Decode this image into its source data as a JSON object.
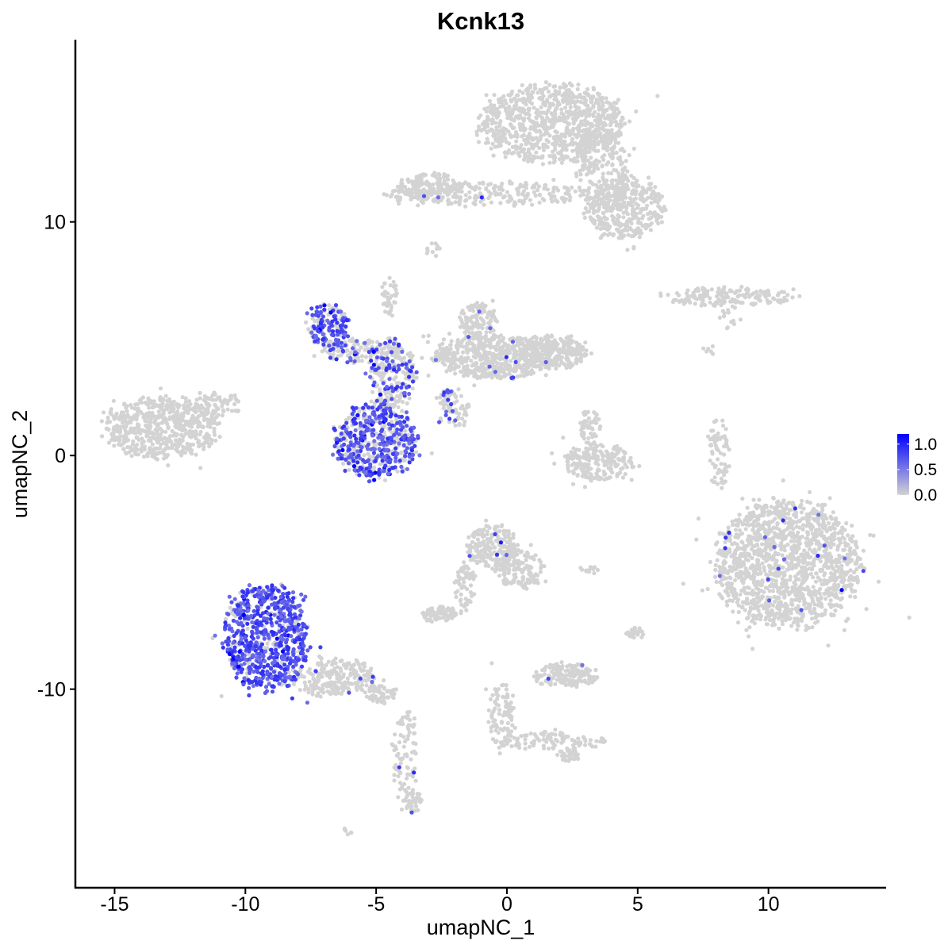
{
  "chart_data": {
    "type": "scatter",
    "title": "Kcnk13",
    "xlabel": "umapNC_1",
    "ylabel": "umapNC_2",
    "xlim": [
      -16.5,
      14.5
    ],
    "ylim": [
      -18.5,
      17.8
    ],
    "x_ticks": [
      -15,
      -10,
      -5,
      0,
      5,
      10
    ],
    "x_tick_labels": [
      "-15",
      "-10",
      "-5",
      "0",
      "5",
      "10"
    ],
    "y_ticks": [
      -10,
      0,
      10
    ],
    "y_tick_labels": [
      "-10",
      "0",
      "10"
    ],
    "grid": false,
    "legend": {
      "placement": "right",
      "type": "colorbar",
      "min": 0.0,
      "max": 1.2,
      "ticks": [
        0.0,
        0.5,
        1.0
      ],
      "tick_labels": [
        "0.0",
        "0.5",
        "1.0"
      ],
      "low_color": "#d3d3d3",
      "high_color": "#0000ff"
    },
    "clusters": [
      {
        "name": "top-big",
        "cx": 1.8,
        "cy": 14.2,
        "rx": 2.8,
        "ry": 1.7,
        "n": 900,
        "expr_frac": 0.0
      },
      {
        "name": "top-arm",
        "cx": -0.8,
        "cy": 11.2,
        "rx": 4.0,
        "ry": 0.5,
        "n": 260,
        "expr_frac": 0.01
      },
      {
        "name": "top-left-blob",
        "cx": -3.0,
        "cy": 11.5,
        "rx": 1.2,
        "ry": 0.6,
        "n": 140,
        "expr_frac": 0.0
      },
      {
        "name": "top-right-tail",
        "cx": 4.5,
        "cy": 10.6,
        "rx": 1.5,
        "ry": 1.3,
        "n": 380,
        "expr_frac": 0.0
      },
      {
        "name": "top-stream",
        "cx": 3.7,
        "cy": 12.3,
        "rx": 1.0,
        "ry": 1.8,
        "n": 200,
        "expr_frac": 0.0
      },
      {
        "name": "top-small-dots",
        "cx": -2.8,
        "cy": 8.8,
        "rx": 0.3,
        "ry": 0.3,
        "n": 12,
        "expr_frac": 0.0
      },
      {
        "name": "right-strip",
        "cx": 8.5,
        "cy": 6.8,
        "rx": 2.6,
        "ry": 0.4,
        "n": 170,
        "expr_frac": 0.0
      },
      {
        "name": "right-strip-tail",
        "cx": 8.5,
        "cy": 6.0,
        "rx": 0.5,
        "ry": 0.6,
        "n": 14,
        "expr_frac": 0.0
      },
      {
        "name": "small-dots-mid",
        "cx": 7.7,
        "cy": 4.6,
        "rx": 0.3,
        "ry": 0.3,
        "n": 6,
        "expr_frac": 0.0
      },
      {
        "name": "left-big",
        "cx": -13.2,
        "cy": 1.2,
        "rx": 2.2,
        "ry": 1.3,
        "n": 600,
        "expr_frac": 0.0
      },
      {
        "name": "left-tail",
        "cx": -11.0,
        "cy": 2.2,
        "rx": 1.0,
        "ry": 0.5,
        "n": 70,
        "expr_frac": 0.0
      },
      {
        "name": "mid-ring",
        "cx": -5.0,
        "cy": 0.6,
        "rx": 1.65,
        "ry": 1.55,
        "n": 540,
        "expr_frac": 0.6
      },
      {
        "name": "mid-stalk",
        "cx": -4.4,
        "cy": 3.5,
        "rx": 0.9,
        "ry": 1.5,
        "n": 240,
        "expr_frac": 0.3
      },
      {
        "name": "upper-left-lobe",
        "cx": -6.9,
        "cy": 5.6,
        "rx": 0.8,
        "ry": 0.9,
        "n": 160,
        "expr_frac": 0.65
      },
      {
        "name": "upper-left-arm",
        "cx": -5.9,
        "cy": 4.5,
        "rx": 1.2,
        "ry": 0.5,
        "n": 120,
        "expr_frac": 0.25
      },
      {
        "name": "upper-right-body",
        "cx": -0.5,
        "cy": 4.2,
        "rx": 2.3,
        "ry": 0.9,
        "n": 600,
        "expr_frac": 0.02
      },
      {
        "name": "upper-right-head",
        "cx": -1.1,
        "cy": 5.7,
        "rx": 0.7,
        "ry": 0.8,
        "n": 130,
        "expr_frac": 0.05
      },
      {
        "name": "upper-right-tail",
        "cx": 1.8,
        "cy": 4.4,
        "rx": 1.2,
        "ry": 0.7,
        "n": 230,
        "expr_frac": 0.0
      },
      {
        "name": "upper-branch",
        "cx": -2.1,
        "cy": 2.0,
        "rx": 0.7,
        "ry": 0.9,
        "n": 80,
        "expr_frac": 0.15
      },
      {
        "name": "upper-spike",
        "cx": -4.5,
        "cy": 6.8,
        "rx": 0.3,
        "ry": 0.8,
        "n": 40,
        "expr_frac": 0.02
      },
      {
        "name": "center-small",
        "cx": 3.5,
        "cy": -0.3,
        "rx": 1.3,
        "ry": 0.8,
        "n": 230,
        "expr_frac": 0.0
      },
      {
        "name": "center-small-top",
        "cx": 3.2,
        "cy": 1.2,
        "rx": 0.4,
        "ry": 0.8,
        "n": 50,
        "expr_frac": 0.0
      },
      {
        "name": "right-thin-arc",
        "cx": 8.1,
        "cy": 0.1,
        "rx": 0.4,
        "ry": 1.5,
        "n": 70,
        "expr_frac": 0.0
      },
      {
        "name": "right-big",
        "cx": 10.7,
        "cy": -4.6,
        "rx": 2.8,
        "ry": 2.7,
        "n": 1500,
        "expr_frac": 0.012
      },
      {
        "name": "bottom-left-big",
        "cx": -9.2,
        "cy": -7.8,
        "rx": 1.6,
        "ry": 2.3,
        "n": 740,
        "expr_frac": 0.78
      },
      {
        "name": "bottom-left-tail",
        "cx": -6.6,
        "cy": -9.5,
        "rx": 1.6,
        "ry": 0.8,
        "n": 240,
        "expr_frac": 0.02
      },
      {
        "name": "bottom-left-tail2",
        "cx": -4.8,
        "cy": -10.2,
        "rx": 0.6,
        "ry": 0.4,
        "n": 60,
        "expr_frac": 0.0
      },
      {
        "name": "bottom-stem",
        "cx": -3.9,
        "cy": -12.8,
        "rx": 0.5,
        "ry": 2.0,
        "n": 90,
        "expr_frac": 0.01
      },
      {
        "name": "bottom-stem-tip",
        "cx": -3.6,
        "cy": -14.8,
        "rx": 0.35,
        "ry": 0.5,
        "n": 40,
        "expr_frac": 0.03
      },
      {
        "name": "lower-mid-top",
        "cx": -0.6,
        "cy": -3.9,
        "rx": 1.0,
        "ry": 0.9,
        "n": 200,
        "expr_frac": 0.03
      },
      {
        "name": "lower-mid-body",
        "cx": 0.5,
        "cy": -4.9,
        "rx": 0.9,
        "ry": 0.8,
        "n": 140,
        "expr_frac": 0.0
      },
      {
        "name": "lower-mid-stream",
        "cx": -1.6,
        "cy": -5.7,
        "rx": 0.4,
        "ry": 1.0,
        "n": 60,
        "expr_frac": 0.0
      },
      {
        "name": "lower-left-blob",
        "cx": -2.6,
        "cy": -6.8,
        "rx": 0.7,
        "ry": 0.35,
        "n": 80,
        "expr_frac": 0.0
      },
      {
        "name": "bottom-center-blob",
        "cx": 2.3,
        "cy": -9.4,
        "rx": 1.3,
        "ry": 0.5,
        "n": 170,
        "expr_frac": 0.01
      },
      {
        "name": "bottom-center-stem",
        "cx": -0.2,
        "cy": -11.2,
        "rx": 0.5,
        "ry": 1.6,
        "n": 90,
        "expr_frac": 0.0
      },
      {
        "name": "bottom-center-arm",
        "cx": 1.8,
        "cy": -12.2,
        "rx": 2.1,
        "ry": 0.4,
        "n": 100,
        "expr_frac": 0.0
      },
      {
        "name": "bottom-center-tip",
        "cx": 2.4,
        "cy": -12.8,
        "rx": 0.5,
        "ry": 0.3,
        "n": 40,
        "expr_frac": 0.0
      },
      {
        "name": "right-small",
        "cx": 4.9,
        "cy": -7.6,
        "rx": 0.35,
        "ry": 0.25,
        "n": 25,
        "expr_frac": 0.0
      },
      {
        "name": "bottom-small",
        "cx": -6.1,
        "cy": -16.1,
        "rx": 0.2,
        "ry": 0.15,
        "n": 6,
        "expr_frac": 0.0
      },
      {
        "name": "mid-small-dots",
        "cx": 3.1,
        "cy": -4.9,
        "rx": 0.4,
        "ry": 0.2,
        "n": 12,
        "expr_frac": 0.0
      }
    ]
  }
}
